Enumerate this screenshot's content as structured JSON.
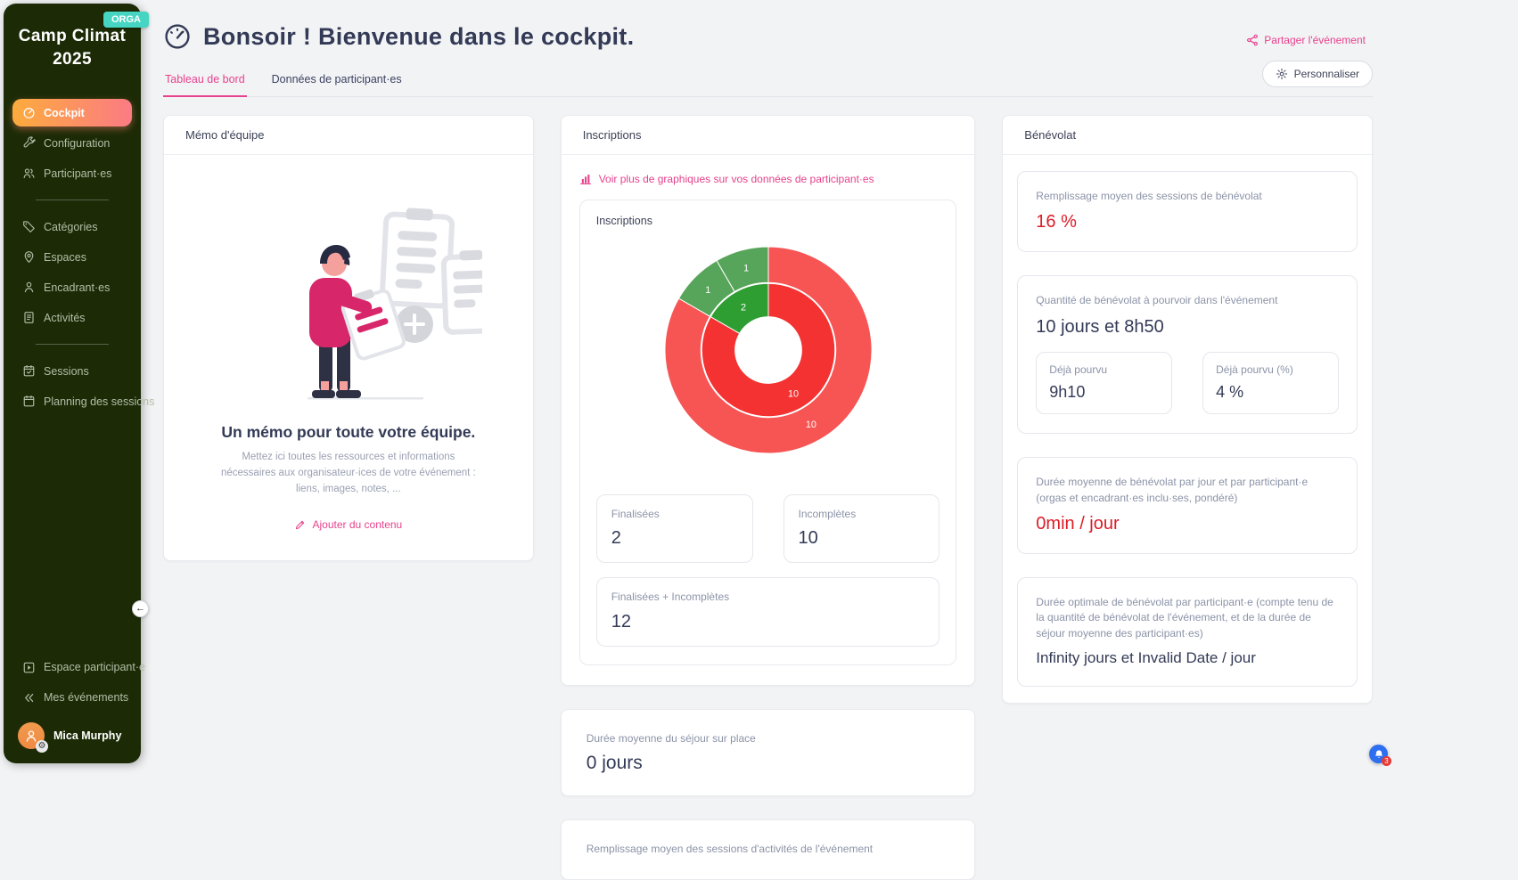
{
  "sidebar": {
    "event_title": "Camp Climat 2025",
    "role_badge": "ORGA",
    "nav_main": [
      {
        "label": "Cockpit"
      },
      {
        "label": "Configuration"
      },
      {
        "label": "Participant·es"
      }
    ],
    "nav_catalog": [
      {
        "label": "Catégories"
      },
      {
        "label": "Espaces"
      },
      {
        "label": "Encadrant·es"
      },
      {
        "label": "Activités"
      }
    ],
    "nav_sessions": [
      {
        "label": "Sessions"
      },
      {
        "label": "Planning des sessions"
      }
    ],
    "nav_footer": [
      {
        "label": "Espace participant·e"
      },
      {
        "label": "Mes événements"
      }
    ],
    "user_name": "Mica Murphy"
  },
  "header": {
    "title": "Bonsoir ! Bienvenue dans le cockpit.",
    "share_label": "Partager l'événement",
    "customize_label": "Personnaliser",
    "tabs": [
      {
        "label": "Tableau de bord"
      },
      {
        "label": "Données de participant·es"
      }
    ]
  },
  "memo": {
    "card_title": "Mémo d'équipe",
    "headline": "Un mémo pour toute votre équipe.",
    "description": "Mettez ici toutes les ressources et informations nécessaires aux organisateur·ices de votre événement : liens, images, notes, ...",
    "action_label": "Ajouter du contenu"
  },
  "inscriptions": {
    "card_title": "Inscriptions",
    "more_graphs_label": "Voir plus de graphiques sur vos données de participant·es",
    "chart_title": "Inscriptions",
    "stats": [
      {
        "label": "Finalisées",
        "value": "2"
      },
      {
        "label": "Incomplètes",
        "value": "10"
      },
      {
        "label": "Finalisées + Incomplètes",
        "value": "12"
      }
    ],
    "stay_duration": {
      "label": "Durée moyenne du séjour sur place",
      "value": "0 jours"
    },
    "partial_card_label": "Remplissage moyen des sessions d'activités de l'événement"
  },
  "chart_data": {
    "type": "donut",
    "title": "Inscriptions",
    "legend": false,
    "rings": [
      {
        "name": "inner-ring-total",
        "inner_radius": 38,
        "outer_radius": 76,
        "slices": [
          {
            "label": "10",
            "value": 10,
            "color": "#f43232",
            "series": "Incomplètes"
          },
          {
            "label": "2",
            "value": 2,
            "color": "#2e9e33",
            "series": "Finalisées"
          }
        ]
      },
      {
        "name": "outer-ring-detail",
        "inner_radius": 77,
        "outer_radius": 118,
        "slices": [
          {
            "label": "10",
            "value": 10,
            "color": "#f75454",
            "series": "Incomplètes"
          },
          {
            "label": "1",
            "value": 1,
            "color": "#57a55a",
            "series": "Finalisées"
          },
          {
            "label": "1",
            "value": 1,
            "color": "#57a55a",
            "series": "Finalisées"
          }
        ]
      }
    ]
  },
  "benevolat": {
    "card_title": "Bénévolat",
    "fill_rate": {
      "label": "Remplissage moyen des sessions de bénévolat",
      "value": "16 %"
    },
    "quantity": {
      "label": "Quantité de bénévolat à pourvoir dans l'événement",
      "value": "10 jours et 8h50",
      "provided": {
        "label": "Déjà pourvu",
        "value": "9h10"
      },
      "provided_pct": {
        "label": "Déjà pourvu (%)",
        "value": "4 %"
      }
    },
    "daily_average": {
      "label": "Durée moyenne de bénévolat par jour et par participant·e (orgas et encadrant·es inclu·ses, pondéré)",
      "value": "0min / jour"
    },
    "optimal": {
      "label": "Durée optimale de bénévolat par participant·e (compte tenu de la quantité de bénévolat de l'événement, et de la durée de séjour moyenne des participant·es)",
      "value": "Infinity jours et Invalid Date / jour"
    }
  },
  "floating": {
    "notification_badge": "3"
  }
}
